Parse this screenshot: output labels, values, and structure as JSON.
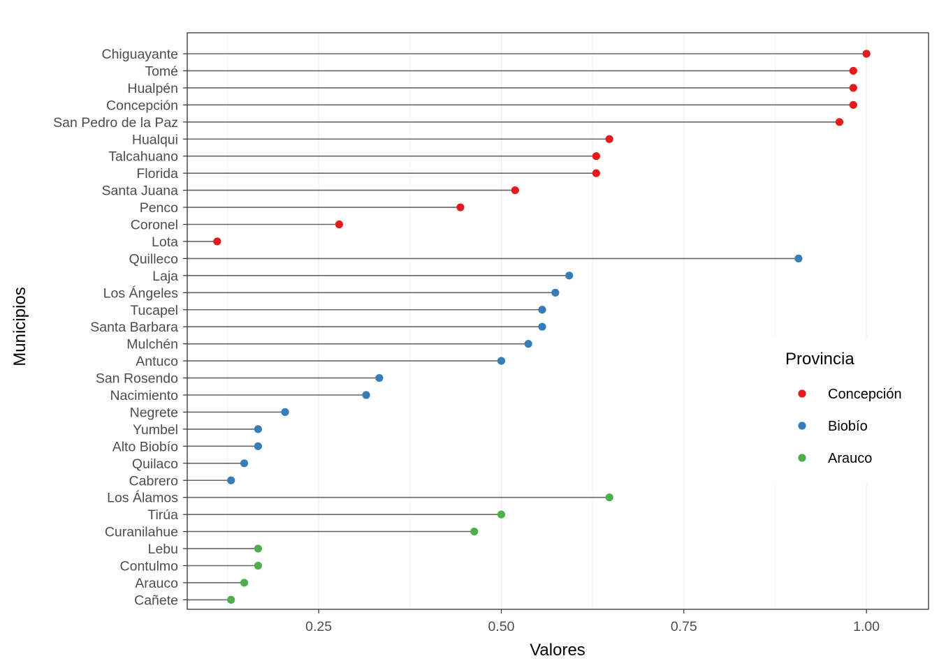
{
  "chart_data": {
    "type": "lollipop",
    "xlabel": "Valores",
    "ylabel": "Municipios",
    "xlim": [
      0.07,
      1.085
    ],
    "xticks": [
      0.25,
      0.5,
      0.75,
      1.0
    ],
    "xtick_labels": [
      "0.25",
      "0.50",
      "0.75",
      "1.00"
    ],
    "grid": true,
    "legend": {
      "title": "Provincia",
      "position": "right",
      "items": [
        {
          "label": "Concepción",
          "color": "#e41a1c"
        },
        {
          "label": "Biobío",
          "color": "#377eb8"
        },
        {
          "label": "Arauco",
          "color": "#4daf4a"
        }
      ]
    },
    "points": [
      {
        "name": "Chiguayante",
        "value": 1.0,
        "provincia": "Concepción"
      },
      {
        "name": "Tomé",
        "value": 0.982,
        "provincia": "Concepción"
      },
      {
        "name": "Hualpén",
        "value": 0.982,
        "provincia": "Concepción"
      },
      {
        "name": "Concepción",
        "value": 0.982,
        "provincia": "Concepción"
      },
      {
        "name": "San Pedro de la Paz",
        "value": 0.963,
        "provincia": "Concepción"
      },
      {
        "name": "Hualqui",
        "value": 0.648,
        "provincia": "Concepción"
      },
      {
        "name": "Talcahuano",
        "value": 0.63,
        "provincia": "Concepción"
      },
      {
        "name": "Florida",
        "value": 0.63,
        "provincia": "Concepción"
      },
      {
        "name": "Santa Juana",
        "value": 0.519,
        "provincia": "Concepción"
      },
      {
        "name": "Penco",
        "value": 0.444,
        "provincia": "Concepción"
      },
      {
        "name": "Coronel",
        "value": 0.278,
        "provincia": "Concepción"
      },
      {
        "name": "Lota",
        "value": 0.111,
        "provincia": "Concepción"
      },
      {
        "name": "Quilleco",
        "value": 0.907,
        "provincia": "Biobío"
      },
      {
        "name": "Laja",
        "value": 0.593,
        "provincia": "Biobío"
      },
      {
        "name": "Los Ángeles",
        "value": 0.574,
        "provincia": "Biobío"
      },
      {
        "name": "Tucapel",
        "value": 0.556,
        "provincia": "Biobío"
      },
      {
        "name": "Santa Barbara",
        "value": 0.556,
        "provincia": "Biobío"
      },
      {
        "name": "Mulchén",
        "value": 0.537,
        "provincia": "Biobío"
      },
      {
        "name": "Antuco",
        "value": 0.5,
        "provincia": "Biobío"
      },
      {
        "name": "San Rosendo",
        "value": 0.333,
        "provincia": "Biobío"
      },
      {
        "name": "Nacimiento",
        "value": 0.315,
        "provincia": "Biobío"
      },
      {
        "name": "Negrete",
        "value": 0.204,
        "provincia": "Biobío"
      },
      {
        "name": "Yumbel",
        "value": 0.167,
        "provincia": "Biobío"
      },
      {
        "name": "Alto Biobío",
        "value": 0.167,
        "provincia": "Biobío"
      },
      {
        "name": "Quilaco",
        "value": 0.148,
        "provincia": "Biobío"
      },
      {
        "name": "Cabrero",
        "value": 0.13,
        "provincia": "Biobío"
      },
      {
        "name": "Los Álamos",
        "value": 0.648,
        "provincia": "Arauco"
      },
      {
        "name": "Tirúa",
        "value": 0.5,
        "provincia": "Arauco"
      },
      {
        "name": "Curanilahue",
        "value": 0.463,
        "provincia": "Arauco"
      },
      {
        "name": "Lebu",
        "value": 0.167,
        "provincia": "Arauco"
      },
      {
        "name": "Contulmo",
        "value": 0.167,
        "provincia": "Arauco"
      },
      {
        "name": "Arauco",
        "value": 0.148,
        "provincia": "Arauco"
      },
      {
        "name": "Cañete",
        "value": 0.13,
        "provincia": "Arauco"
      }
    ]
  }
}
